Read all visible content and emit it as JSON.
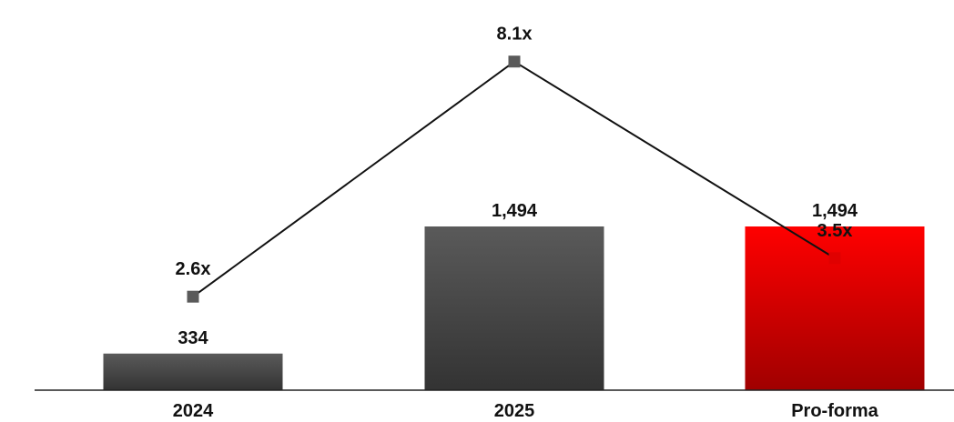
{
  "chart_data": {
    "type": "bar",
    "categories": [
      "2024",
      "2025",
      "Pro-forma"
    ],
    "bar_values": [
      334,
      1494,
      1494
    ],
    "bar_value_labels": [
      "334",
      "1,494",
      "1,494"
    ],
    "line_values": [
      2.6,
      8.1,
      3.5
    ],
    "line_value_labels": [
      "2.6x",
      "8.1x",
      "3.5x"
    ],
    "colors": {
      "bar_dark_top": "#5a5a5a",
      "bar_dark_bottom": "#333333",
      "bar_red_top": "#ff0000",
      "bar_red_bottom": "#a00000",
      "line": "#111111",
      "marker_dark": "#5a5a5a",
      "marker_red": "#e00000"
    },
    "highlight_index": 2,
    "grid": false,
    "legend": "none"
  }
}
